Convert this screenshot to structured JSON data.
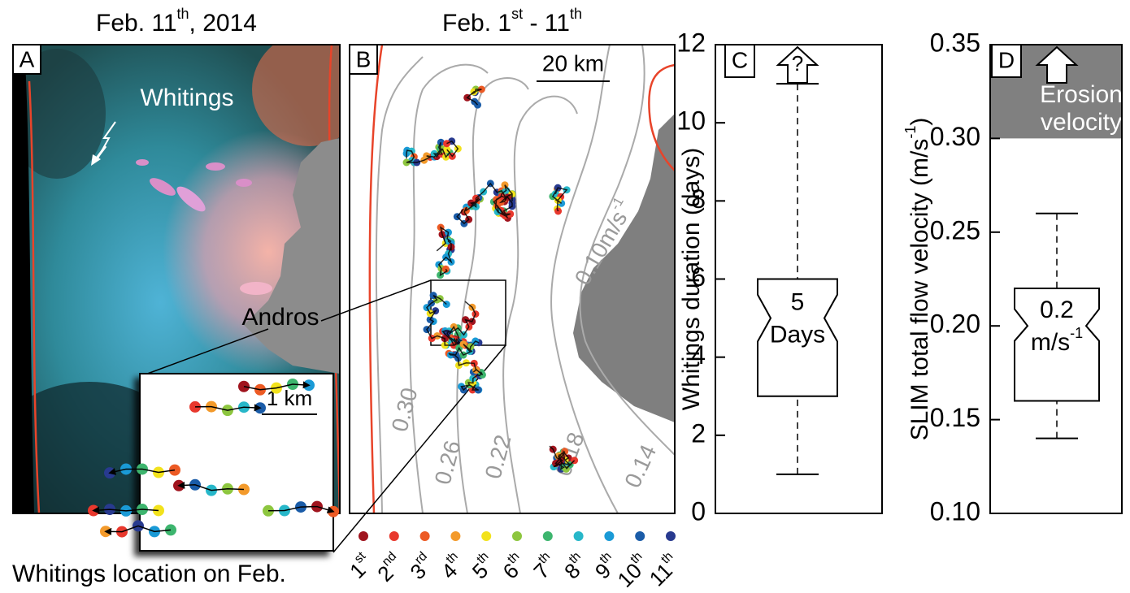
{
  "panels": {
    "a": {
      "label": "A",
      "title": [
        "Feb. 11",
        "th",
        ", 2014"
      ],
      "annotations": [
        "Whitings",
        "Andros"
      ],
      "inset_scale": "1 km"
    },
    "b": {
      "label": "B",
      "title": [
        "Feb. 1",
        "st",
        " - 11",
        "th"
      ],
      "scale": "20 km",
      "contours": [
        [
          "0.30"
        ],
        [
          "0.26"
        ],
        [
          "0.22"
        ],
        [
          "0.18"
        ],
        [
          "0.14"
        ],
        [
          "0.10m/s",
          "-1"
        ]
      ]
    }
  },
  "legend": {
    "title": "Whitings location on Feb.",
    "days": [
      {
        "label": [
          "1",
          "st"
        ],
        "color": "#a0141e"
      },
      {
        "label": [
          "2",
          "nd"
        ],
        "color": "#e8382d"
      },
      {
        "label": [
          "3",
          "rd"
        ],
        "color": "#ec5a24"
      },
      {
        "label": [
          "4",
          "th"
        ],
        "color": "#f39a2b"
      },
      {
        "label": [
          "5",
          "th"
        ],
        "color": "#f2e21c"
      },
      {
        "label": [
          "6",
          "th"
        ],
        "color": "#8dc63f"
      },
      {
        "label": [
          "7",
          "th"
        ],
        "color": "#3db56e"
      },
      {
        "label": [
          "8",
          "th"
        ],
        "color": "#27b7c9"
      },
      {
        "label": [
          "9",
          "th"
        ],
        "color": "#1a9ad6"
      },
      {
        "label": [
          "10",
          "th"
        ],
        "color": "#1a5ca8"
      },
      {
        "label": [
          "11",
          "th"
        ],
        "color": "#283a8f"
      }
    ]
  },
  "chart_data": [
    {
      "type": "box",
      "label": "C",
      "ylabel": [
        "Whitings duration (days)"
      ],
      "ylim": [
        0,
        12
      ],
      "yticks": [
        0,
        2,
        4,
        6,
        8,
        10,
        12
      ],
      "min": 1,
      "q1": 3,
      "median": 5,
      "q3": 6,
      "max": 11,
      "notch": [
        4.4,
        5.6
      ],
      "median_label": [
        [
          "5"
        ],
        [
          "Days"
        ]
      ],
      "annotation": "?"
    },
    {
      "type": "box",
      "label": "D",
      "ylabel": [
        "SLIM total flow velocity (m/s",
        "-1",
        ")"
      ],
      "ylim": [
        0.1,
        0.35
      ],
      "yticks": [
        {
          "value": 0.1,
          "label": "0.10"
        },
        0.15,
        {
          "value": 0.2,
          "label": "0.20"
        },
        0.25,
        {
          "value": 0.3,
          "label": "0.30"
        },
        0.35
      ],
      "min": 0.14,
      "q1": 0.16,
      "median": 0.2,
      "q3": 0.22,
      "max": 0.26,
      "notch": [
        0.192,
        0.209
      ],
      "median_label": [
        [
          "0.2"
        ],
        [
          "m/s",
          "-1"
        ]
      ],
      "threshold": 0.3,
      "threshold_label": [
        "Erosion",
        "velocity"
      ]
    }
  ]
}
